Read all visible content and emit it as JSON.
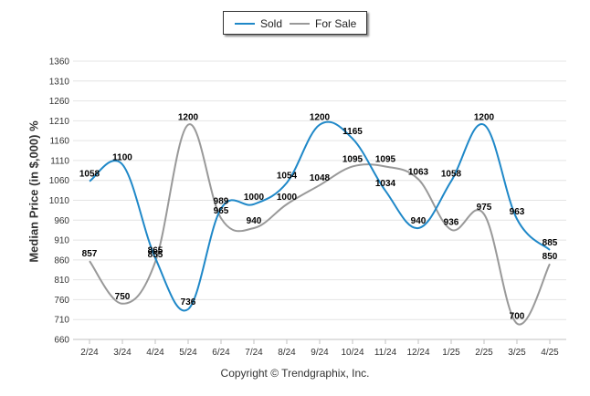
{
  "legend": {
    "series0": "Sold",
    "series1": "For Sale"
  },
  "copyright": "Copyright © Trendgraphix, Inc.",
  "chart_data": {
    "type": "line",
    "ylabel": "Median Price (in $,000) %",
    "xlabel": "",
    "ylim": [
      660,
      1360
    ],
    "yticks": [
      660,
      710,
      760,
      810,
      860,
      910,
      960,
      1010,
      1060,
      1110,
      1160,
      1210,
      1260,
      1310,
      1360
    ],
    "categories": [
      "2/24",
      "3/24",
      "4/24",
      "5/24",
      "6/24",
      "7/24",
      "8/24",
      "9/24",
      "10/24",
      "11/24",
      "12/24",
      "1/25",
      "2/25",
      "3/25",
      "4/25"
    ],
    "series": [
      {
        "name": "Sold",
        "color": "#1f88c8",
        "values": [
          1058,
          1100,
          865,
          736,
          989,
          1000,
          1054,
          1200,
          1165,
          1034,
          940,
          1058,
          1200,
          963,
          885
        ]
      },
      {
        "name": "For Sale",
        "color": "#999999",
        "values": [
          857,
          750,
          855,
          1200,
          965,
          940,
          1000,
          1048,
          1095,
          1095,
          1063,
          936,
          975,
          700,
          850
        ]
      }
    ],
    "grid": true,
    "legend_position": "top-center"
  }
}
